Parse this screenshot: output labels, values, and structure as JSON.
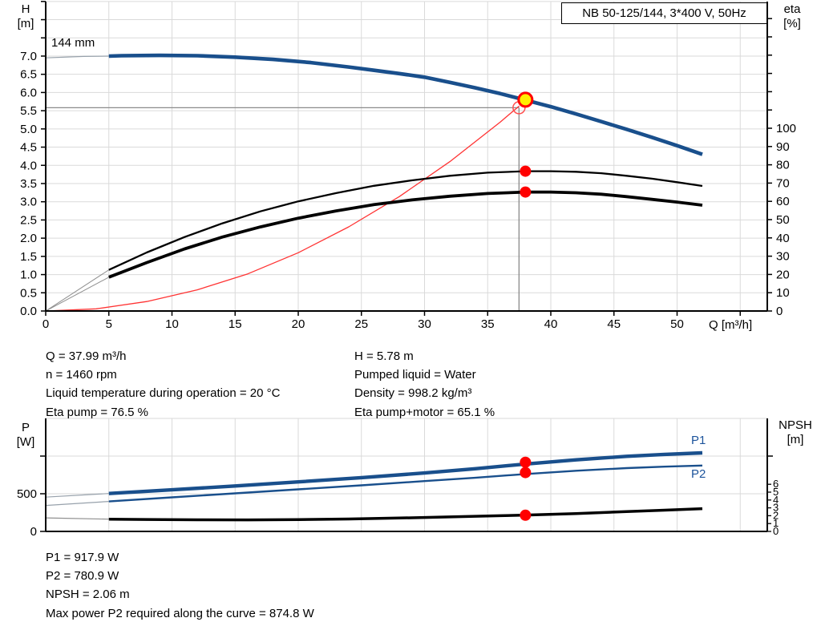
{
  "colors": {
    "curve_blue": "#194f8c",
    "curve_black": "#000000",
    "system_red": "#ff3333",
    "marker_red": "#ff0000",
    "marker_yellow": "#ffee00",
    "grid": "#dadada",
    "crosshair": "#8a8a8a",
    "thin_lead": "#97a1ab",
    "axis": "#000000"
  },
  "details": {
    "left": [
      "Q = 37.99 m³/h",
      "n = 1460 rpm",
      "Liquid temperature during operation = 20 °C",
      "Eta pump = 76.5 %"
    ],
    "right": [
      "H = 5.78 m",
      "Pumped liquid = Water",
      "Density = 998.2 kg/m³",
      "Eta pump+motor = 65.1 %"
    ]
  },
  "results": [
    "P1 = 917.9 W",
    "P2 = 780.9 W",
    "NPSH = 2.06 m",
    "Max power P2 required along the curve = 874.8 W"
  ],
  "chart_data": [
    {
      "type": "line",
      "title": "NB 50-125/144, 3*400 V, 50Hz",
      "x_axis": {
        "label": "Q [m³/h]",
        "min": 0,
        "max": 57,
        "tick_step": 5,
        "labeled_max": 50,
        "grid_max": 55
      },
      "y_left": {
        "label": "H [m]",
        "label_lines": [
          "H",
          "[m]"
        ],
        "min": 0,
        "max": 8.5,
        "tick_step": 0.5,
        "labeled_max": 7.0
      },
      "y_right": {
        "label": "eta [%]",
        "label_lines": [
          "eta",
          "[%]"
        ],
        "min": 0,
        "max": 160,
        "tick_step": 10,
        "labeled_max": 100
      },
      "duty_point": {
        "Q": 37.99,
        "H": 5.78,
        "eta_pump": 76.5,
        "eta_pump_motor": 65.1
      },
      "series": [
        {
          "name": "144 mm",
          "axis": "left",
          "role": "head-curve",
          "thin": [
            [
              0,
              6.95
            ],
            [
              3,
              6.99
            ],
            [
              5,
              7.0
            ]
          ],
          "points": [
            [
              5,
              7.0
            ],
            [
              6,
              7.01
            ],
            [
              9,
              7.02
            ],
            [
              12,
              7.01
            ],
            [
              15,
              6.97
            ],
            [
              18,
              6.91
            ],
            [
              21,
              6.82
            ],
            [
              24,
              6.7
            ],
            [
              26,
              6.61
            ],
            [
              28,
              6.52
            ],
            [
              30,
              6.42
            ],
            [
              32,
              6.28
            ],
            [
              34,
              6.13
            ],
            [
              36,
              5.97
            ],
            [
              38,
              5.79
            ],
            [
              40,
              5.61
            ],
            [
              42,
              5.41
            ],
            [
              44,
              5.2
            ],
            [
              46,
              4.99
            ],
            [
              48,
              4.77
            ],
            [
              50,
              4.54
            ],
            [
              52,
              4.3
            ]
          ]
        },
        {
          "name": "Eta pump",
          "axis": "right",
          "role": "efficiency",
          "thin": [
            [
              0,
              0
            ],
            [
              5,
              22.5
            ]
          ],
          "points": [
            [
              5,
              22.5
            ],
            [
              8,
              32
            ],
            [
              11,
              40.5
            ],
            [
              14,
              48
            ],
            [
              17,
              54.5
            ],
            [
              20,
              60
            ],
            [
              23,
              64.5
            ],
            [
              26,
              68.5
            ],
            [
              29,
              71.5
            ],
            [
              32,
              74
            ],
            [
              35,
              75.7
            ],
            [
              38,
              76.5
            ],
            [
              40,
              76.5
            ],
            [
              42,
              76.2
            ],
            [
              44,
              75.4
            ],
            [
              46,
              74
            ],
            [
              48,
              72.4
            ],
            [
              50,
              70.5
            ],
            [
              52,
              68.4
            ]
          ]
        },
        {
          "name": "Eta pump+motor",
          "axis": "right",
          "role": "efficiency",
          "thin": [
            [
              0,
              0
            ],
            [
              5,
              18.5
            ]
          ],
          "points": [
            [
              5,
              18.5
            ],
            [
              8,
              26.5
            ],
            [
              11,
              34
            ],
            [
              14,
              40.5
            ],
            [
              17,
              46
            ],
            [
              20,
              50.8
            ],
            [
              23,
              54.8
            ],
            [
              26,
              58.2
            ],
            [
              29,
              60.8
            ],
            [
              32,
              62.8
            ],
            [
              35,
              64.3
            ],
            [
              38,
              65.1
            ],
            [
              40,
              65.1
            ],
            [
              42,
              64.7
            ],
            [
              44,
              63.9
            ],
            [
              46,
              62.6
            ],
            [
              48,
              61.1
            ],
            [
              50,
              59.6
            ],
            [
              52,
              57.9
            ]
          ]
        },
        {
          "name": "System curve",
          "axis": "left",
          "role": "system",
          "points": [
            [
              0,
              0
            ],
            [
              4,
              0.06
            ],
            [
              8,
              0.26
            ],
            [
              12,
              0.58
            ],
            [
              16,
              1.02
            ],
            [
              20,
              1.6
            ],
            [
              24,
              2.31
            ],
            [
              28,
              3.14
            ],
            [
              32,
              4.1
            ],
            [
              36,
              5.19
            ],
            [
              37.5,
              5.63
            ]
          ]
        }
      ]
    },
    {
      "type": "line",
      "x_axis": {
        "label": "",
        "min": 0,
        "max": 57,
        "tick_step": 5,
        "grid_max": 55
      },
      "y_left": {
        "label": "P [W]",
        "label_lines": [
          "P",
          "[W]"
        ],
        "min": 0,
        "max": 1500,
        "tick_step": 500,
        "labeled_ticks": [
          0,
          500
        ]
      },
      "y_right": {
        "label": "NPSH [m]",
        "label_lines": [
          "NPSH",
          "[m]"
        ],
        "min": 0,
        "max": 6,
        "tick_step": 1
      },
      "duty_point": {
        "Q": 37.99,
        "P1": 917.9,
        "P2": 780.9,
        "NPSH": 2.06
      },
      "series": [
        {
          "name": "P1",
          "axis": "left",
          "role": "power",
          "thin": [
            [
              0,
              455
            ],
            [
              5,
              503
            ]
          ],
          "points": [
            [
              5,
              503
            ],
            [
              10,
              552
            ],
            [
              15,
              603
            ],
            [
              20,
              657
            ],
            [
              25,
              714
            ],
            [
              30,
              776
            ],
            [
              34,
              832
            ],
            [
              38,
              895
            ],
            [
              42,
              950
            ],
            [
              46,
              997
            ],
            [
              49,
              1022
            ],
            [
              52,
              1043
            ]
          ]
        },
        {
          "name": "P2",
          "axis": "left",
          "role": "power",
          "thin": [
            [
              0,
              345
            ],
            [
              5,
              398
            ]
          ],
          "points": [
            [
              5,
              398
            ],
            [
              10,
              452
            ],
            [
              15,
              505
            ],
            [
              20,
              558
            ],
            [
              25,
              612
            ],
            [
              30,
              668
            ],
            [
              34,
              712
            ],
            [
              38,
              762
            ],
            [
              42,
              805
            ],
            [
              46,
              840
            ],
            [
              49,
              860
            ],
            [
              52,
              874
            ]
          ]
        },
        {
          "name": "NPSH",
          "axis": "right",
          "role": "npsh",
          "thin": [
            [
              0,
              1.72
            ],
            [
              5,
              1.56
            ]
          ],
          "points": [
            [
              5,
              1.56
            ],
            [
              8,
              1.52
            ],
            [
              12,
              1.48
            ],
            [
              16,
              1.47
            ],
            [
              20,
              1.5
            ],
            [
              24,
              1.58
            ],
            [
              28,
              1.7
            ],
            [
              32,
              1.85
            ],
            [
              36,
              2.0
            ],
            [
              38,
              2.08
            ],
            [
              42,
              2.28
            ],
            [
              46,
              2.52
            ],
            [
              49,
              2.7
            ],
            [
              52,
              2.9
            ]
          ]
        }
      ]
    }
  ]
}
